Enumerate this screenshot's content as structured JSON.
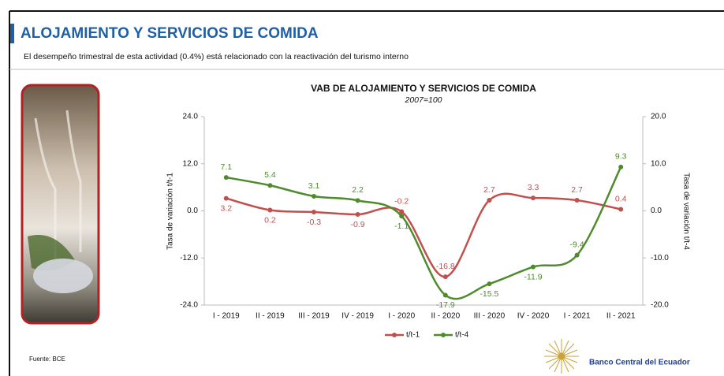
{
  "header": {
    "title": "ALOJAMIENTO Y SERVICIOS DE COMIDA",
    "subtitle": "El desempeño trimestral de esta actividad (0.4%) está relacionado con la reactivación del turismo interno"
  },
  "footer": {
    "source": "Fuente: BCE",
    "brand": "Banco Central del Ecuador"
  },
  "chart_data": {
    "type": "line",
    "title": "VAB DE ALOJAMIENTO Y SERVICIOS DE COMIDA",
    "subtitle": "2007=100",
    "y_label": "Tasa de variación t/t-1",
    "y2_label": "Tasa de variación t/t-4",
    "categories": [
      "I - 2019",
      "II - 2019",
      "III - 2019",
      "IV - 2019",
      "I - 2020",
      "II - 2020",
      "III - 2020",
      "IV - 2020",
      "I - 2021",
      "II - 2021"
    ],
    "series": [
      {
        "name": "t/t-1",
        "color": "#c0504d",
        "values": [
          3.2,
          0.2,
          -0.3,
          -0.9,
          -0.2,
          -16.8,
          2.7,
          3.3,
          2.7,
          0.4
        ]
      },
      {
        "name": "t/t-4",
        "color": "#4f8b2c",
        "axis": "y2",
        "values": [
          7.1,
          5.4,
          3.1,
          2.2,
          -1.1,
          -17.9,
          -15.5,
          -11.9,
          -9.4,
          9.3
        ]
      }
    ],
    "ylim": [
      -24,
      24
    ],
    "yticks": [
      {
        "value": -24,
        "label": "-24.0"
      },
      {
        "value": -12,
        "label": "-12.0"
      },
      {
        "value": 0,
        "label": "0.0"
      },
      {
        "value": 12,
        "label": "12.0"
      },
      {
        "value": 24,
        "label": "24.0"
      }
    ],
    "y2lim": [
      -20,
      20
    ],
    "y2ticks": [
      {
        "value": -20,
        "label": "-20.0"
      },
      {
        "value": -10,
        "label": "-10.0"
      },
      {
        "value": 0,
        "label": "0.0"
      },
      {
        "value": 10,
        "label": "10.0"
      },
      {
        "value": 20,
        "label": "20.0"
      }
    ],
    "grid": false,
    "legend": "bottom"
  }
}
